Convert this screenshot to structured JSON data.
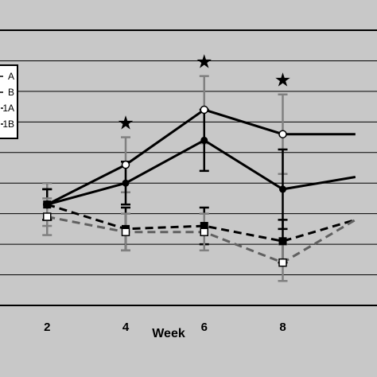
{
  "chart_data": {
    "type": "line",
    "title": "",
    "xlabel": "Week",
    "ylabel": "",
    "x_ticks": [
      "2",
      "4",
      "6",
      "8"
    ],
    "xlim": [
      0.8,
      10.4
    ],
    "ylim": [
      0,
      9
    ],
    "grid": true,
    "legend_position": "left",
    "legend_entries": [
      "A",
      "B",
      "1A",
      "1B"
    ],
    "significance_marker": "★",
    "significant_weeks": [
      4,
      6,
      8
    ],
    "series": [
      {
        "name": "A",
        "style": "solid",
        "marker": "open-circle",
        "line_color": "#000000",
        "error_color": "#808080",
        "points": [
          {
            "x": 2,
            "y": 3.3,
            "err": 0.7
          },
          {
            "x": 4,
            "y": 4.6,
            "err": 0.9
          },
          {
            "x": 6,
            "y": 6.4,
            "err": 1.1
          },
          {
            "x": 8,
            "y": 5.6,
            "err": 1.3
          },
          {
            "x": 9.85,
            "y": 5.6
          }
        ]
      },
      {
        "name": "B",
        "style": "solid",
        "marker": "filled-circle",
        "line_color": "#000000",
        "error_color": "#000000",
        "points": [
          {
            "x": 2,
            "y": 3.3,
            "err": 0.5
          },
          {
            "x": 4,
            "y": 4.0,
            "err": 0.7
          },
          {
            "x": 6,
            "y": 5.4,
            "err": 1.0
          },
          {
            "x": 8,
            "y": 3.8,
            "err": 1.3
          },
          {
            "x": 9.85,
            "y": 4.2
          }
        ]
      },
      {
        "name": "1A",
        "style": "dashed",
        "marker": "filled-square",
        "line_color": "#000000",
        "error_color": "#000000",
        "points": [
          {
            "x": 2,
            "y": 3.3,
            "err": 0.5
          },
          {
            "x": 4,
            "y": 2.5,
            "err": 0.7
          },
          {
            "x": 6,
            "y": 2.6,
            "err": 0.6
          },
          {
            "x": 8,
            "y": 2.1,
            "err": 0.7
          },
          {
            "x": 9.85,
            "y": 2.8
          }
        ]
      },
      {
        "name": "1B",
        "style": "dashed",
        "marker": "open-square",
        "line_color": "#606060",
        "error_color": "#808080",
        "points": [
          {
            "x": 2,
            "y": 2.9,
            "err": 0.6
          },
          {
            "x": 4,
            "y": 2.4,
            "err": 0.6
          },
          {
            "x": 6,
            "y": 2.4,
            "err": 0.6
          },
          {
            "x": 8,
            "y": 1.4,
            "err": 0.6
          },
          {
            "x": 9.85,
            "y": 2.8
          }
        ]
      }
    ]
  }
}
